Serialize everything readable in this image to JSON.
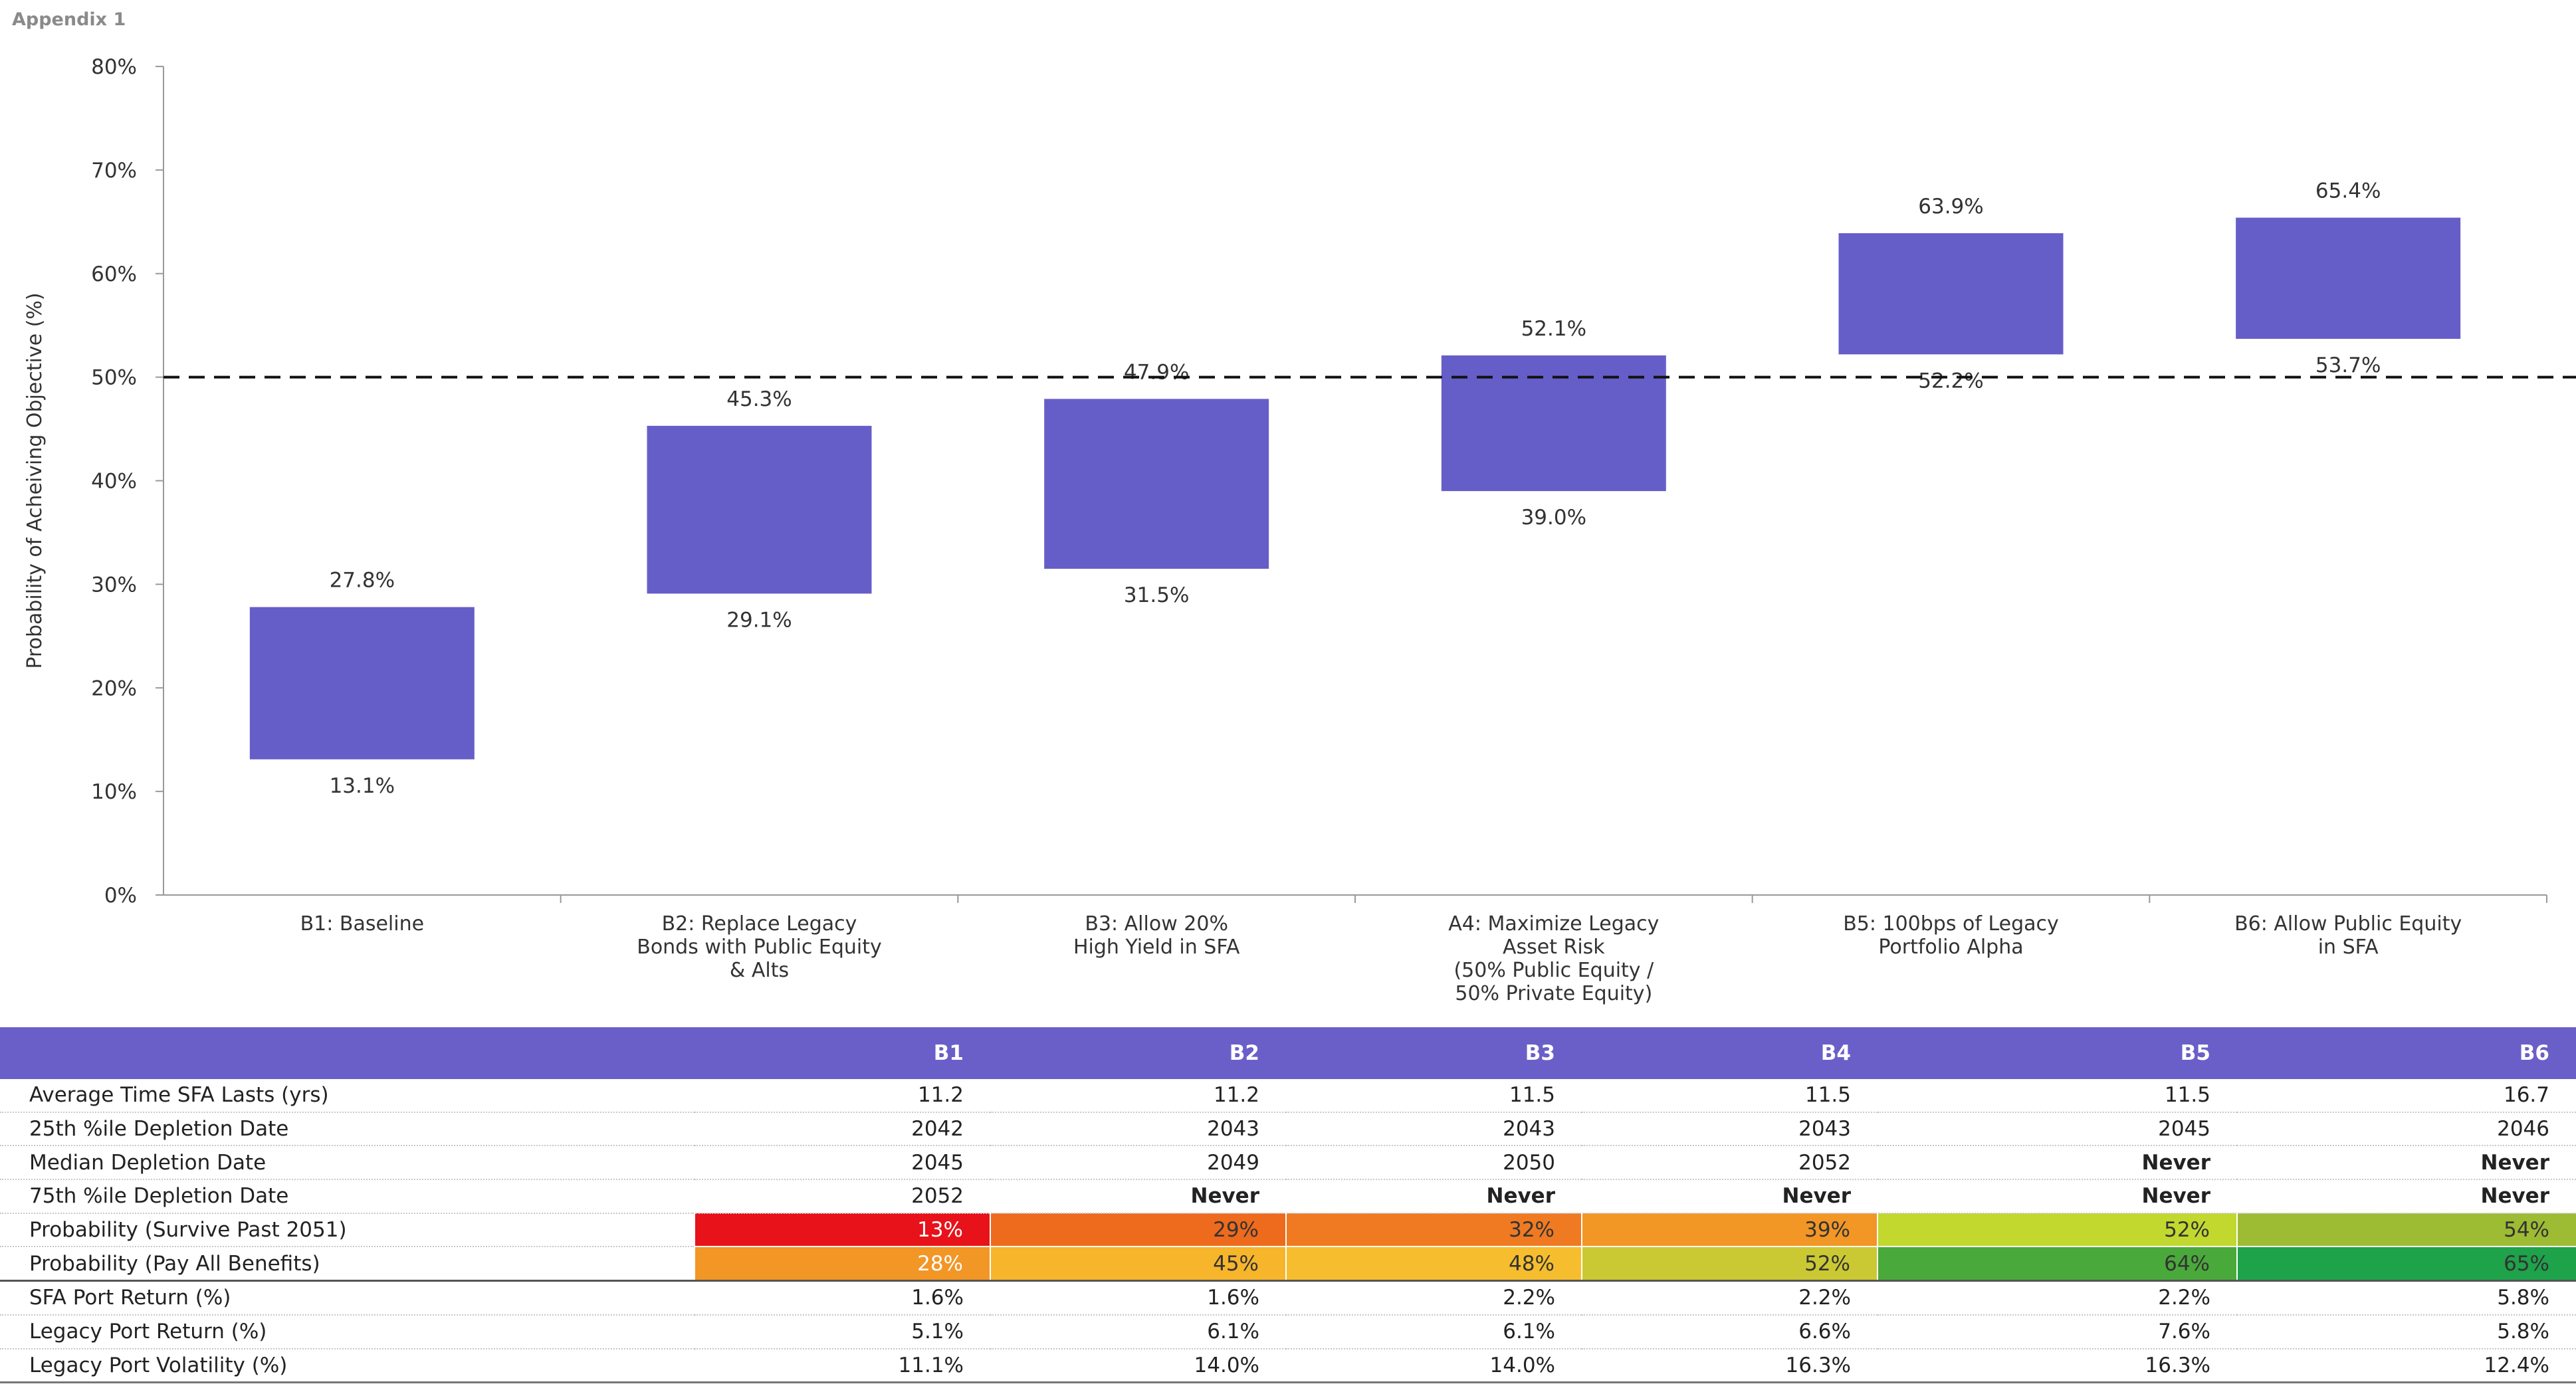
{
  "header": {
    "appendix_label": "Appendix 1"
  },
  "chart_data": {
    "type": "floating-bar",
    "ylabel": "Probability of Acheiving Objective (%)",
    "ylim": [
      0,
      80
    ],
    "yticks": [
      "0%",
      "10%",
      "20%",
      "30%",
      "40%",
      "50%",
      "60%",
      "70%",
      "80%"
    ],
    "threshold": 50,
    "bar_color": "#665ec8",
    "categories": [
      "B1: Baseline",
      "B2: Replace Legacy\nBonds with Public Equity\n& Alts",
      "B3: Allow 20%\nHigh Yield in SFA",
      "A4: Maximize Legacy\nAsset Risk\n(50% Public Equity /\n50% Private Equity)",
      "B5: 100bps of Legacy\nPortfolio Alpha",
      "B6: Allow Public Equity\nin SFA"
    ],
    "low": [
      13.1,
      29.1,
      31.5,
      39.0,
      52.2,
      53.7
    ],
    "high": [
      27.8,
      45.3,
      47.9,
      52.1,
      63.9,
      65.4
    ],
    "low_labels": [
      "13.1%",
      "29.1%",
      "31.5%",
      "39.0%",
      "52.2%",
      "53.7%"
    ],
    "high_labels": [
      "27.8%",
      "45.3%",
      "47.9%",
      "52.1%",
      "63.9%",
      "65.4%"
    ]
  },
  "table": {
    "headers": [
      "B1",
      "B2",
      "B3",
      "B4",
      "B5",
      "B6"
    ],
    "rows": [
      {
        "label": "Average Time SFA Lasts (yrs)",
        "values": [
          "11.2",
          "11.2",
          "11.5",
          "11.5",
          "11.5",
          "16.7"
        ]
      },
      {
        "label": "25th %ile Depletion Date",
        "values": [
          "2042",
          "2043",
          "2043",
          "2043",
          "2045",
          "2046"
        ]
      },
      {
        "label": "Median Depletion Date",
        "values": [
          "2045",
          "2049",
          "2050",
          "2052",
          "Never",
          "Never"
        ]
      },
      {
        "label": "75th %ile Depletion Date",
        "values": [
          "2052",
          "Never",
          "Never",
          "Never",
          "Never",
          "Never"
        ]
      },
      {
        "label": "Probability (Survive Past 2051)",
        "values": [
          "13%",
          "29%",
          "32%",
          "39%",
          "52%",
          "54%"
        ],
        "colors": [
          "#e8121a",
          "#ee6a1c",
          "#ef7a22",
          "#f29626",
          "#c2d82f",
          "#9dbb33"
        ]
      },
      {
        "label": "Probability (Pay All Benefits)",
        "values": [
          "28%",
          "45%",
          "48%",
          "52%",
          "64%",
          "65%"
        ],
        "colors": [
          "#f29626",
          "#f7b52c",
          "#f6be2e",
          "#cbc933",
          "#4aa93b",
          "#1ea24a"
        ]
      },
      {
        "label": "SFA Port Return (%)",
        "values": [
          "1.6%",
          "1.6%",
          "2.2%",
          "2.2%",
          "2.2%",
          "5.8%"
        ]
      },
      {
        "label": "Legacy Port Return (%)",
        "values": [
          "5.1%",
          "6.1%",
          "6.1%",
          "6.6%",
          "7.6%",
          "5.8%"
        ]
      },
      {
        "label": "Legacy Port Volatility (%)",
        "values": [
          "11.1%",
          "14.0%",
          "14.0%",
          "16.3%",
          "16.3%",
          "12.4%"
        ]
      }
    ]
  }
}
